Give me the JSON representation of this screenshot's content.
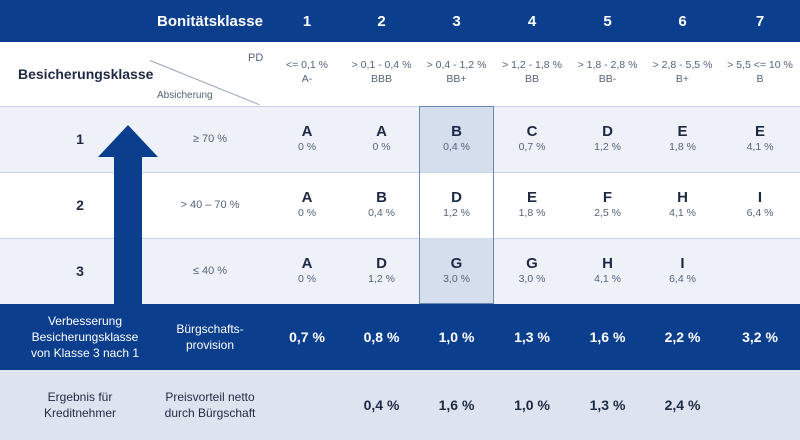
{
  "header": {
    "title": "Bonitätsklasse",
    "classes": [
      "1",
      "2",
      "3",
      "4",
      "5",
      "6",
      "7"
    ]
  },
  "subheader": {
    "row_title": "Besicherungsklasse",
    "pd_label": "PD",
    "absicherung_label": "Absicherung",
    "pd_ranges": [
      "<= 0,1 %",
      "> 0,1 - 0,4 %",
      "> 0,4 - 1,2 %",
      "> 1,2 - 1,8 %",
      "> 1,8 - 2,8 %",
      "> 2,8 - 5,5 %",
      "> 5,5 <= 10 %"
    ],
    "ratings": [
      "A-",
      "BBB",
      "BB+",
      "BB",
      "BB-",
      "B+",
      "B"
    ]
  },
  "rows": [
    {
      "class": "1",
      "security": "≥ 70 %",
      "cells": [
        {
          "grade": "A",
          "pct": "0 %"
        },
        {
          "grade": "A",
          "pct": "0 %"
        },
        {
          "grade": "B",
          "pct": "0,4 %"
        },
        {
          "grade": "C",
          "pct": "0,7 %"
        },
        {
          "grade": "D",
          "pct": "1,2 %"
        },
        {
          "grade": "E",
          "pct": "1,8 %"
        },
        {
          "grade": "E",
          "pct": "4,1 %"
        }
      ]
    },
    {
      "class": "2",
      "security": "> 40 – 70 %",
      "cells": [
        {
          "grade": "A",
          "pct": "0 %"
        },
        {
          "grade": "B",
          "pct": "0,4 %"
        },
        {
          "grade": "D",
          "pct": "1,2 %"
        },
        {
          "grade": "E",
          "pct": "1,8 %"
        },
        {
          "grade": "F",
          "pct": "2,5 %"
        },
        {
          "grade": "H",
          "pct": "4,1 %"
        },
        {
          "grade": "I",
          "pct": "6,4 %"
        }
      ]
    },
    {
      "class": "3",
      "security": "≤ 40 %",
      "cells": [
        {
          "grade": "A",
          "pct": "0 %"
        },
        {
          "grade": "D",
          "pct": "1,2 %"
        },
        {
          "grade": "G",
          "pct": "3,0 %"
        },
        {
          "grade": "G",
          "pct": "3,0 %"
        },
        {
          "grade": "H",
          "pct": "4,1 %"
        },
        {
          "grade": "I",
          "pct": "6,4 %"
        },
        {
          "grade": "",
          "pct": ""
        }
      ]
    }
  ],
  "provision": {
    "improvement_label_line1": "Verbesserung",
    "improvement_label_line2": "Besicherungsklasse",
    "improvement_label_line3": "von Klasse 3 nach 1",
    "label_line1": "Bürgschafts-",
    "label_line2": "provision",
    "values": [
      "0,7 %",
      "0,8 %",
      "1,0 %",
      "1,3 %",
      "1,6 %",
      "2,2 %",
      "3,2 %"
    ]
  },
  "result": {
    "label_line1": "Ergebnis für",
    "label_line2": "Kreditnehmer",
    "sub_line1": "Preisvorteil netto",
    "sub_line2": "durch Bürgschaft",
    "values": [
      "",
      "0,4 %",
      "1,6 %",
      "1,0 %",
      "1,3 %",
      "2,4 %",
      ""
    ]
  },
  "colors": {
    "brand_blue": "#0b3f8e",
    "highlight": "#d5deec",
    "result_band": "#dde4ef"
  }
}
